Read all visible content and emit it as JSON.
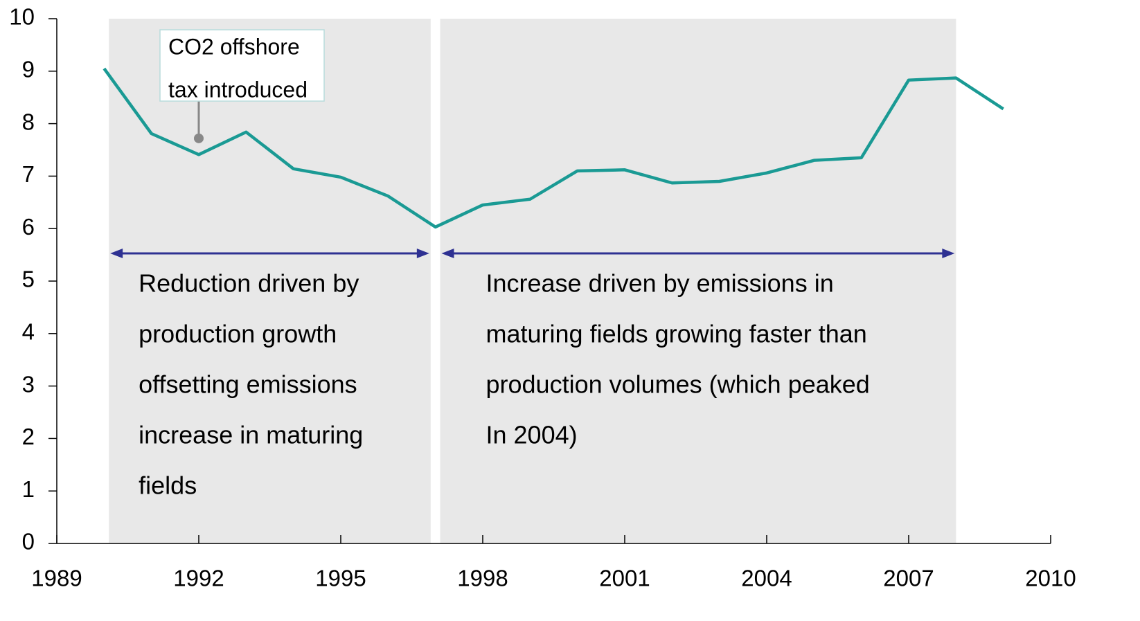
{
  "chart_data": {
    "type": "line",
    "x": [
      1990,
      1991,
      1992,
      1993,
      1994,
      1995,
      1996,
      1997,
      1998,
      1999,
      2000,
      2001,
      2002,
      2003,
      2004,
      2005,
      2006,
      2007,
      2008,
      2009
    ],
    "series": [
      {
        "color": "#1a9a94",
        "values": [
          9.05,
          7.81,
          7.41,
          7.84,
          7.14,
          6.98,
          6.62,
          6.03,
          6.45,
          6.56,
          7.1,
          7.12,
          6.87,
          6.9,
          7.06,
          7.3,
          7.35,
          8.83,
          8.87,
          8.28
        ]
      }
    ],
    "xlim": [
      1989,
      2010
    ],
    "xticks": [
      1989,
      1992,
      1995,
      1998,
      2001,
      2004,
      2007,
      2010
    ],
    "ylim": [
      0,
      10
    ],
    "yticks": [
      0,
      1,
      2,
      3,
      4,
      5,
      6,
      7,
      8,
      9,
      10
    ],
    "periods": [
      {
        "range": [
          1990.1,
          1996.9
        ],
        "color": "#e8e8e8",
        "arrow_color": "#2e3192",
        "text": [
          "Reduction driven by",
          "production growth",
          "offsetting emissions",
          "increase in maturing",
          "fields"
        ]
      },
      {
        "range": [
          1997.1,
          2008
        ],
        "color": "#e8e8e8",
        "arrow_color": "#2e3192",
        "text": [
          "Increase driven by emissions in",
          "maturing fields growing faster than",
          "production volumes (which peaked",
          "In 2004)"
        ]
      }
    ],
    "annotation": {
      "text": [
        "CO2 offshore",
        "tax introduced"
      ],
      "point": [
        1992,
        7.72
      ]
    }
  }
}
